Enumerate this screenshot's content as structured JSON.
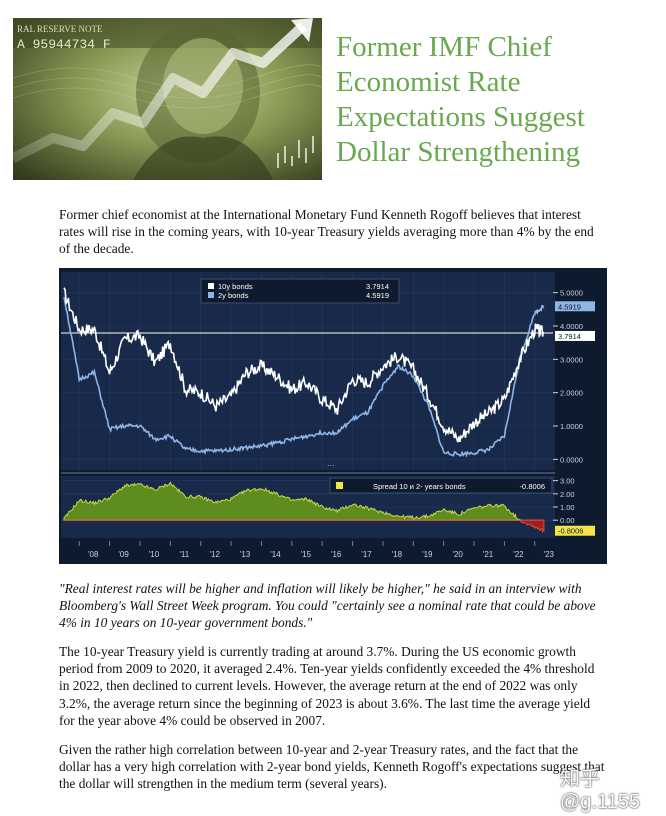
{
  "headline": {
    "lines": [
      "Former IMF Chief",
      "Economist Rate",
      "Expectations Suggest",
      "Dollar Strengthening"
    ]
  },
  "hero": {
    "banknote_text": "RAL RESERVE NOTE",
    "serial": "A 95944734 F"
  },
  "intro": "Former chief economist at the International Monetary Fund Kenneth Rogoff believes that interest rates will rise in the coming years, with 10-year Treasury yields averaging more than 4% by the end of the decade.",
  "quote": "\"Real interest rates will be higher and inflation will likely be higher,\" he said in an interview with Bloomberg's Wall Street Week program. You could \"certainly see a nominal rate that could be above 4% in 10 years on 10-year government bonds.\"",
  "paragraph2": "The 10-year Treasury yield is currently trading at around 3.7%. During the US economic growth period from 2009 to 2020, it averaged 2.4%. Ten-year yields confidently exceeded the 4% threshold in 2022, then declined to current levels. However, the average return at the end of 2022 was only 3.2%, the average return since the beginning of 2023 is about 3.6%. The last time the average yield for the year above 4% could be observed in 2007.",
  "paragraph3": "Given the rather high correlation between 10-year and 2-year Treasury rates, and the fact that the dollar has a very high correlation with 2-year bond yields, Kenneth Rogoff's expectations suggest that the dollar will strengthen in the medium term (several years).",
  "watermark": "知乎 @g.1155",
  "chart_data": {
    "type": "line",
    "top_panel": {
      "legend": [
        {
          "name": "10y bonds",
          "value": "3.7914",
          "color": "#ffffff"
        },
        {
          "name": "2y bonds",
          "value": "4.5919",
          "color": "#8fb4e6"
        }
      ],
      "y_ticks": [
        "5.0000",
        "4.0000",
        "3.0000",
        "2.0000",
        "1.0000",
        "0.0000"
      ],
      "ylim": [
        -0.2,
        5.5
      ],
      "last_labels": {
        "ten": "3.7914",
        "two": "4.5919"
      },
      "x": [
        2007.5,
        2008,
        2008.5,
        2009,
        2009.5,
        2010,
        2010.5,
        2011,
        2011.5,
        2012,
        2012.5,
        2013,
        2013.5,
        2014,
        2014.5,
        2015,
        2015.5,
        2016,
        2016.5,
        2017,
        2017.5,
        2018,
        2018.5,
        2019,
        2019.5,
        2020,
        2020.5,
        2021,
        2021.5,
        2022,
        2022.5,
        2023,
        2023.3
      ],
      "series": [
        {
          "name": "10y bonds",
          "values": [
            5.0,
            3.9,
            3.9,
            2.6,
            3.6,
            3.7,
            2.9,
            3.5,
            2.1,
            2.0,
            1.6,
            1.9,
            2.6,
            2.8,
            2.5,
            2.1,
            2.3,
            1.8,
            1.5,
            2.4,
            2.3,
            2.8,
            3.1,
            2.7,
            1.9,
            1.0,
            0.6,
            1.1,
            1.4,
            1.8,
            3.0,
            3.9,
            3.79
          ]
        },
        {
          "name": "2y bonds",
          "values": [
            4.9,
            2.4,
            2.6,
            0.9,
            1.0,
            1.0,
            0.6,
            0.7,
            0.3,
            0.25,
            0.25,
            0.3,
            0.35,
            0.4,
            0.5,
            0.6,
            0.7,
            0.8,
            0.8,
            1.2,
            1.4,
            2.2,
            2.8,
            2.5,
            1.6,
            0.2,
            0.15,
            0.2,
            0.3,
            0.7,
            3.0,
            4.4,
            4.59
          ]
        }
      ]
    },
    "bottom_panel": {
      "legend": {
        "name": "Spread 10 и 2- years bonds",
        "value": "-0.8006",
        "color": "#f2e34a"
      },
      "y_ticks": [
        "3.00",
        "2.00",
        "1.00",
        "0.00",
        "-0.8006"
      ],
      "ylim": [
        -1.2,
        3.2
      ],
      "series": {
        "name": "Spread 10 и 2- years bonds",
        "values": [
          0.1,
          1.5,
          1.3,
          1.7,
          2.6,
          2.7,
          2.3,
          2.8,
          1.8,
          1.75,
          1.35,
          1.6,
          2.25,
          2.4,
          2.0,
          1.5,
          1.6,
          1.0,
          0.7,
          1.2,
          0.9,
          0.6,
          0.3,
          0.2,
          0.3,
          0.8,
          0.45,
          0.9,
          1.1,
          1.1,
          0.0,
          -0.5,
          -0.8
        ]
      }
    },
    "x_ticks": [
      "'08",
      "'09",
      "'10",
      "'11",
      "'12",
      "'13",
      "'14",
      "'15",
      "'16",
      "'17",
      "'18",
      "'19",
      "'20",
      "'21",
      "'22",
      "'23"
    ],
    "x_tick_years": [
      2008,
      2009,
      2010,
      2011,
      2012,
      2013,
      2014,
      2015,
      2016,
      2017,
      2018,
      2019,
      2020,
      2021,
      2022,
      2023
    ],
    "xlim": [
      2007.4,
      2023.6
    ],
    "reference_line": 3.7914
  }
}
